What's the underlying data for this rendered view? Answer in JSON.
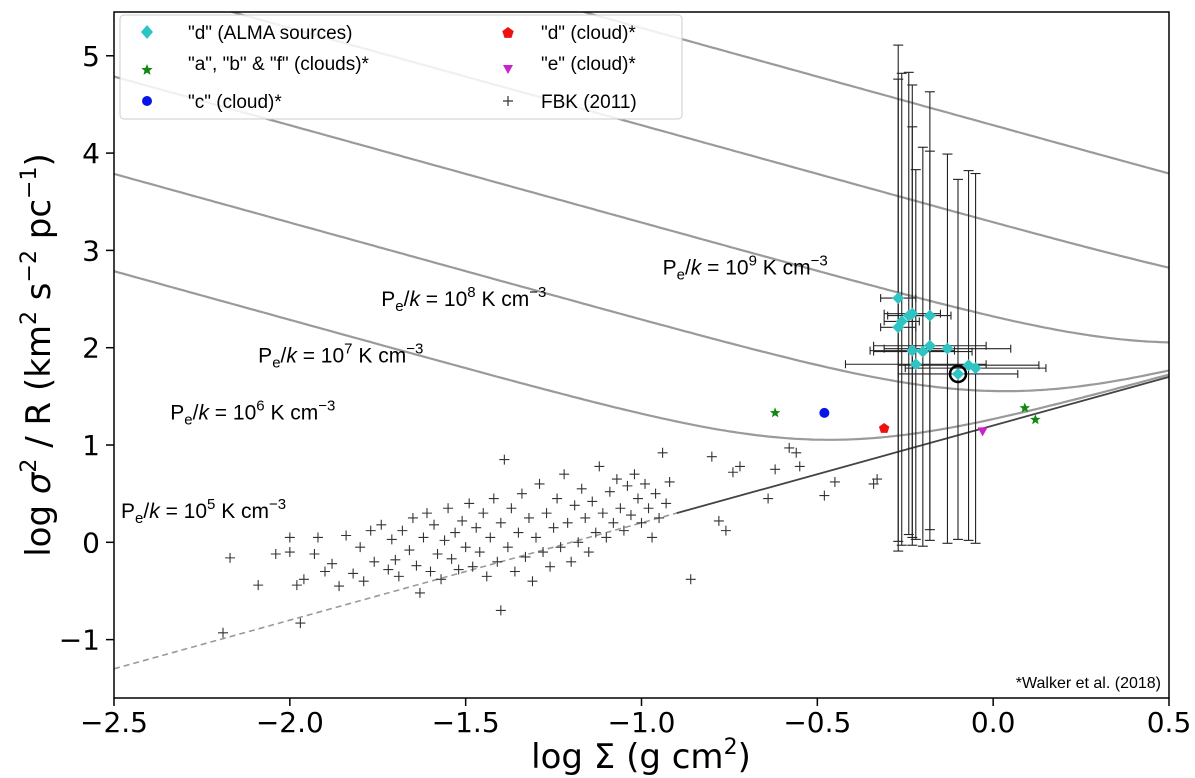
{
  "chart_data": {
    "type": "scatter",
    "xlabel_main": "log Σ (g cm",
    "xlabel_sup": "2",
    "xlabel_end": ")",
    "ylabel_a": "log ",
    "ylabel_sigma": "σ",
    "ylabel_b": " / R (km",
    "ylabel_c": " s",
    "ylabel_d": " pc",
    "ylabel_e": ")",
    "ylabel_sups": [
      "2",
      "2",
      "−2",
      "−1"
    ],
    "xlim": [
      -2.5,
      0.5
    ],
    "ylim": [
      -1.6,
      5.45
    ],
    "xticks": [
      -2.5,
      -2.0,
      -1.5,
      -1.0,
      -0.5,
      0.0,
      0.5
    ],
    "xtick_labels": [
      "−2.5",
      "−2.0",
      "−1.5",
      "−1.0",
      "−0.5",
      "0.0",
      "0.5"
    ],
    "yticks": [
      -1,
      0,
      1,
      2,
      3,
      4,
      5
    ],
    "ytick_labels": [
      "−1",
      "0",
      "1",
      "2",
      "3",
      "4",
      "5"
    ],
    "annotation": "*Walker et al. (2018)",
    "pressure_curves": [
      {
        "logP": 5,
        "label_pre": "P",
        "label_sub": "e",
        "label_mid": "/",
        "label_k": "k",
        "label_eq": " = 10",
        "label_exp": "5",
        "label_post": " K cm",
        "label_unitexp": "−3"
      },
      {
        "logP": 6,
        "label_pre": "P",
        "label_sub": "e",
        "label_mid": "/",
        "label_k": "k",
        "label_eq": " = 10",
        "label_exp": "6",
        "label_post": " K cm",
        "label_unitexp": "−3"
      },
      {
        "logP": 7,
        "label_pre": "P",
        "label_sub": "e",
        "label_mid": "/",
        "label_k": "k",
        "label_eq": " = 10",
        "label_exp": "7",
        "label_post": " K cm",
        "label_unitexp": "−3"
      },
      {
        "logP": 8,
        "label_pre": "P",
        "label_sub": "e",
        "label_mid": "/",
        "label_k": "k",
        "label_eq": " = 10",
        "label_exp": "8",
        "label_post": " K cm",
        "label_unitexp": "−3"
      },
      {
        "logP": 9,
        "label_pre": "P",
        "label_sub": "e",
        "label_mid": "/",
        "label_k": "k",
        "label_eq": " = 10",
        "label_exp": "9",
        "label_post": " K cm",
        "label_unitexp": "−3"
      }
    ],
    "virial_line": {
      "slope": 1.0,
      "intercept": 1.2
    },
    "legend": [
      {
        "label": "\"d\" (ALMA sources)",
        "marker": "diamond",
        "color": "#2ec4c4"
      },
      {
        "label": "\"a\", \"b\" & \"f\" (clouds)*",
        "marker": "star",
        "color": "#118811"
      },
      {
        "label": "\"c\" (cloud)*",
        "marker": "circle",
        "color": "#0a14e6"
      },
      {
        "label": "\"d\" (cloud)*",
        "marker": "pentagon",
        "color": "#ee1111"
      },
      {
        "label": "\"e\" (cloud)*",
        "marker": "triangle-down",
        "color": "#cc22cc"
      },
      {
        "label": "FBK (2011)",
        "marker": "plus",
        "color": "#333333"
      }
    ],
    "series": [
      {
        "name": "\"d\" (ALMA sources)",
        "color": "#2ec4c4",
        "points": [
          {
            "x": -0.27,
            "y": 2.51
          },
          {
            "x": -0.26,
            "y": 2.27
          },
          {
            "x": -0.27,
            "y": 2.21
          },
          {
            "x": -0.24,
            "y": 2.33
          },
          {
            "x": -0.23,
            "y": 2.35
          },
          {
            "x": -0.18,
            "y": 2.33
          },
          {
            "x": -0.23,
            "y": 1.97
          },
          {
            "x": -0.2,
            "y": 1.96
          },
          {
            "x": -0.18,
            "y": 2.02
          },
          {
            "x": -0.13,
            "y": 1.99
          },
          {
            "x": -0.22,
            "y": 1.83
          },
          {
            "x": -0.07,
            "y": 1.82
          },
          {
            "x": -0.05,
            "y": 1.79
          },
          {
            "x": -0.1,
            "y": 1.73
          }
        ],
        "xerr": [
          0.05,
          0.05,
          0.05,
          0.06,
          0.08,
          0.06,
          0.12,
          0.14,
          0.16,
          0.18,
          0.2,
          0.2,
          0.2,
          0.17
        ],
        "yerr_low": [
          2.5,
          2.3,
          2.3,
          2.25,
          2.3,
          2.2,
          2.0,
          2.0,
          2.0,
          2.0,
          1.8,
          1.8,
          1.8,
          1.7
        ],
        "yerr_high": [
          2.6,
          2.55,
          2.55,
          2.5,
          2.35,
          2.3,
          2.3,
          2.1,
          2.0,
          2.0,
          2.0,
          2.0,
          2.0,
          2.0
        ],
        "highlight_index": 13
      },
      {
        "name": "\"a\", \"b\" & \"f\" (clouds)*",
        "color": "#118811",
        "points": [
          {
            "x": -0.62,
            "y": 1.33
          },
          {
            "x": 0.09,
            "y": 1.38
          },
          {
            "x": 0.12,
            "y": 1.26
          }
        ]
      },
      {
        "name": "\"c\" (cloud)*",
        "color": "#0a14e6",
        "points": [
          {
            "x": -0.48,
            "y": 1.33
          }
        ]
      },
      {
        "name": "\"d\" (cloud)*",
        "color": "#ee1111",
        "points": [
          {
            "x": -0.31,
            "y": 1.17
          }
        ]
      },
      {
        "name": "\"e\" (cloud)*",
        "color": "#cc22cc",
        "points": [
          {
            "x": -0.03,
            "y": 1.14
          }
        ]
      },
      {
        "name": "FBK (2011)",
        "color": "#333333",
        "points": [
          {
            "x": -2.19,
            "y": -0.93
          },
          {
            "x": -2.17,
            "y": -0.16
          },
          {
            "x": -2.09,
            "y": -0.44
          },
          {
            "x": -2.04,
            "y": -0.12
          },
          {
            "x": -2.0,
            "y": 0.05
          },
          {
            "x": -2.0,
            "y": -0.1
          },
          {
            "x": -1.98,
            "y": -0.44
          },
          {
            "x": -1.97,
            "y": -0.83
          },
          {
            "x": -1.96,
            "y": -0.38
          },
          {
            "x": -1.93,
            "y": -0.12
          },
          {
            "x": -1.92,
            "y": 0.05
          },
          {
            "x": -1.9,
            "y": -0.3
          },
          {
            "x": -1.88,
            "y": -0.22
          },
          {
            "x": -1.86,
            "y": -0.45
          },
          {
            "x": -1.84,
            "y": 0.07
          },
          {
            "x": -1.82,
            "y": -0.32
          },
          {
            "x": -1.8,
            "y": -0.05
          },
          {
            "x": -1.79,
            "y": -0.4
          },
          {
            "x": -1.77,
            "y": 0.12
          },
          {
            "x": -1.76,
            "y": -0.2
          },
          {
            "x": -1.74,
            "y": 0.18
          },
          {
            "x": -1.72,
            "y": -0.28
          },
          {
            "x": -1.71,
            "y": 0.03
          },
          {
            "x": -1.7,
            "y": -0.18
          },
          {
            "x": -1.69,
            "y": -0.35
          },
          {
            "x": -1.68,
            "y": 0.12
          },
          {
            "x": -1.66,
            "y": -0.08
          },
          {
            "x": -1.65,
            "y": 0.25
          },
          {
            "x": -1.64,
            "y": -0.24
          },
          {
            "x": -1.63,
            "y": -0.52
          },
          {
            "x": -1.62,
            "y": 0.05
          },
          {
            "x": -1.61,
            "y": 0.3
          },
          {
            "x": -1.6,
            "y": -0.3
          },
          {
            "x": -1.59,
            "y": 0.18
          },
          {
            "x": -1.58,
            "y": -0.12
          },
          {
            "x": -1.57,
            "y": -0.38
          },
          {
            "x": -1.56,
            "y": 0.02
          },
          {
            "x": -1.55,
            "y": 0.35
          },
          {
            "x": -1.54,
            "y": -0.17
          },
          {
            "x": -1.53,
            "y": 0.1
          },
          {
            "x": -1.52,
            "y": -0.28
          },
          {
            "x": -1.51,
            "y": 0.22
          },
          {
            "x": -1.5,
            "y": -0.05
          },
          {
            "x": -1.49,
            "y": 0.4
          },
          {
            "x": -1.48,
            "y": -0.25
          },
          {
            "x": -1.47,
            "y": 0.15
          },
          {
            "x": -1.46,
            "y": -0.1
          },
          {
            "x": -1.45,
            "y": 0.3
          },
          {
            "x": -1.44,
            "y": -0.35
          },
          {
            "x": -1.43,
            "y": 0.05
          },
          {
            "x": -1.42,
            "y": 0.45
          },
          {
            "x": -1.41,
            "y": -0.2
          },
          {
            "x": -1.4,
            "y": -0.7
          },
          {
            "x": -1.4,
            "y": 0.2
          },
          {
            "x": -1.39,
            "y": 0.85
          },
          {
            "x": -1.38,
            "y": -0.05
          },
          {
            "x": -1.37,
            "y": 0.35
          },
          {
            "x": -1.36,
            "y": -0.3
          },
          {
            "x": -1.35,
            "y": 0.1
          },
          {
            "x": -1.34,
            "y": 0.5
          },
          {
            "x": -1.33,
            "y": -0.15
          },
          {
            "x": -1.32,
            "y": 0.25
          },
          {
            "x": -1.31,
            "y": -0.4
          },
          {
            "x": -1.3,
            "y": 0.05
          },
          {
            "x": -1.29,
            "y": 0.6
          },
          {
            "x": -1.28,
            "y": -0.1
          },
          {
            "x": -1.27,
            "y": 0.3
          },
          {
            "x": -1.26,
            "y": -0.25
          },
          {
            "x": -1.25,
            "y": 0.15
          },
          {
            "x": -1.24,
            "y": 0.45
          },
          {
            "x": -1.23,
            "y": -0.05
          },
          {
            "x": -1.22,
            "y": 0.7
          },
          {
            "x": -1.21,
            "y": 0.2
          },
          {
            "x": -1.2,
            "y": -0.2
          },
          {
            "x": -1.19,
            "y": 0.38
          },
          {
            "x": -1.18,
            "y": 0.0
          },
          {
            "x": -1.17,
            "y": 0.55
          },
          {
            "x": -1.16,
            "y": 0.25
          },
          {
            "x": -1.15,
            "y": -0.1
          },
          {
            "x": -1.14,
            "y": 0.42
          },
          {
            "x": -1.13,
            "y": 0.1
          },
          {
            "x": -1.12,
            "y": 0.78
          },
          {
            "x": -1.11,
            "y": 0.3
          },
          {
            "x": -1.1,
            "y": 0.05
          },
          {
            "x": -1.09,
            "y": 0.52
          },
          {
            "x": -1.08,
            "y": 0.2
          },
          {
            "x": -1.07,
            "y": 0.65
          },
          {
            "x": -1.06,
            "y": 0.35
          },
          {
            "x": -1.05,
            "y": 0.12
          },
          {
            "x": -1.04,
            "y": 0.58
          },
          {
            "x": -1.03,
            "y": 0.28
          },
          {
            "x": -1.02,
            "y": 0.7
          },
          {
            "x": -1.01,
            "y": 0.45
          },
          {
            "x": -1.0,
            "y": 0.2
          },
          {
            "x": -0.99,
            "y": 0.6
          },
          {
            "x": -0.98,
            "y": 0.35
          },
          {
            "x": -0.97,
            "y": 0.05
          },
          {
            "x": -0.96,
            "y": 0.5
          },
          {
            "x": -0.95,
            "y": 0.25
          },
          {
            "x": -0.94,
            "y": 0.92
          },
          {
            "x": -0.93,
            "y": 0.4
          },
          {
            "x": -0.92,
            "y": 0.62
          },
          {
            "x": -0.86,
            "y": -0.38
          },
          {
            "x": -0.8,
            "y": 0.88
          },
          {
            "x": -0.78,
            "y": 0.22
          },
          {
            "x": -0.76,
            "y": 0.12
          },
          {
            "x": -0.74,
            "y": 0.72
          },
          {
            "x": -0.72,
            "y": 0.78
          },
          {
            "x": -0.64,
            "y": 0.45
          },
          {
            "x": -0.62,
            "y": 0.75
          },
          {
            "x": -0.58,
            "y": 0.97
          },
          {
            "x": -0.56,
            "y": 0.92
          },
          {
            "x": -0.55,
            "y": 0.78
          },
          {
            "x": -0.48,
            "y": 0.48
          },
          {
            "x": -0.45,
            "y": 0.62
          },
          {
            "x": -0.34,
            "y": 0.6
          },
          {
            "x": -0.33,
            "y": 0.65
          }
        ]
      }
    ]
  }
}
